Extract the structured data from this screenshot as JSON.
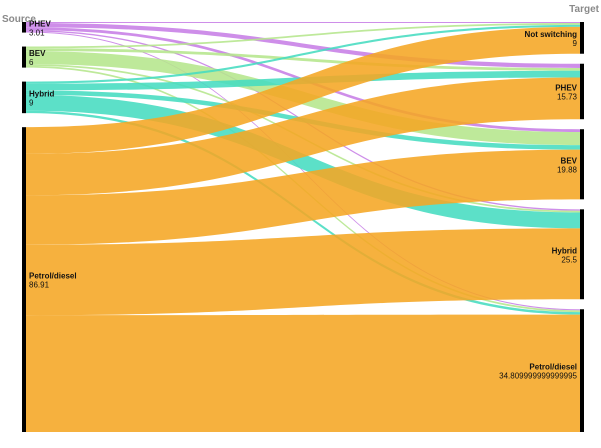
{
  "chart_data": {
    "type": "sankey",
    "headers": {
      "source": "Source",
      "target": "Target"
    },
    "sources": [
      {
        "key": "phev",
        "name": "PHEV",
        "value_label": "3.01",
        "value": 3.01,
        "color": "#c77ee6"
      },
      {
        "key": "bev",
        "name": "BEV",
        "value_label": "6",
        "value": 6,
        "color": "#b5e68c"
      },
      {
        "key": "hybrid",
        "name": "Hybrid",
        "value_label": "9",
        "value": 9,
        "color": "#45dcc0"
      },
      {
        "key": "petrol",
        "name": "Petrol/diesel",
        "value_label": "86.91",
        "value": 86.91,
        "color": "#f5a623"
      }
    ],
    "targets": [
      {
        "key": "not",
        "name": "Not switching",
        "value_label": "9",
        "value": 9
      },
      {
        "key": "phev",
        "name": "PHEV",
        "value_label": "15.73",
        "value": 15.73
      },
      {
        "key": "bev",
        "name": "BEV",
        "value_label": "19.88",
        "value": 19.88
      },
      {
        "key": "hybrid",
        "name": "Hybrid",
        "value_label": "25.5",
        "value": 25.5
      },
      {
        "key": "petrol",
        "name": "Petrol/diesel",
        "value_label": "34.809999999999995",
        "value": 34.81
      }
    ],
    "links": [
      {
        "source": "phev",
        "target": "not",
        "value": 0.3
      },
      {
        "source": "phev",
        "target": "phev",
        "value": 1.2
      },
      {
        "source": "phev",
        "target": "bev",
        "value": 0.8
      },
      {
        "source": "phev",
        "target": "hybrid",
        "value": 0.4
      },
      {
        "source": "phev",
        "target": "petrol",
        "value": 0.31
      },
      {
        "source": "bev",
        "target": "not",
        "value": 0.5
      },
      {
        "source": "bev",
        "target": "phev",
        "value": 0.8
      },
      {
        "source": "bev",
        "target": "bev",
        "value": 3.7
      },
      {
        "source": "bev",
        "target": "hybrid",
        "value": 0.5
      },
      {
        "source": "bev",
        "target": "petrol",
        "value": 0.5
      },
      {
        "source": "hybrid",
        "target": "not",
        "value": 0.6
      },
      {
        "source": "hybrid",
        "target": "phev",
        "value": 1.9
      },
      {
        "source": "hybrid",
        "target": "bev",
        "value": 1.3
      },
      {
        "source": "hybrid",
        "target": "hybrid",
        "value": 4.5
      },
      {
        "source": "hybrid",
        "target": "petrol",
        "value": 0.7
      },
      {
        "source": "petrol",
        "target": "not",
        "value": 7.6
      },
      {
        "source": "petrol",
        "target": "phev",
        "value": 11.83
      },
      {
        "source": "petrol",
        "target": "bev",
        "value": 14.08
      },
      {
        "source": "petrol",
        "target": "hybrid",
        "value": 20.1
      },
      {
        "source": "petrol",
        "target": "petrol",
        "value": 33.3
      }
    ]
  }
}
